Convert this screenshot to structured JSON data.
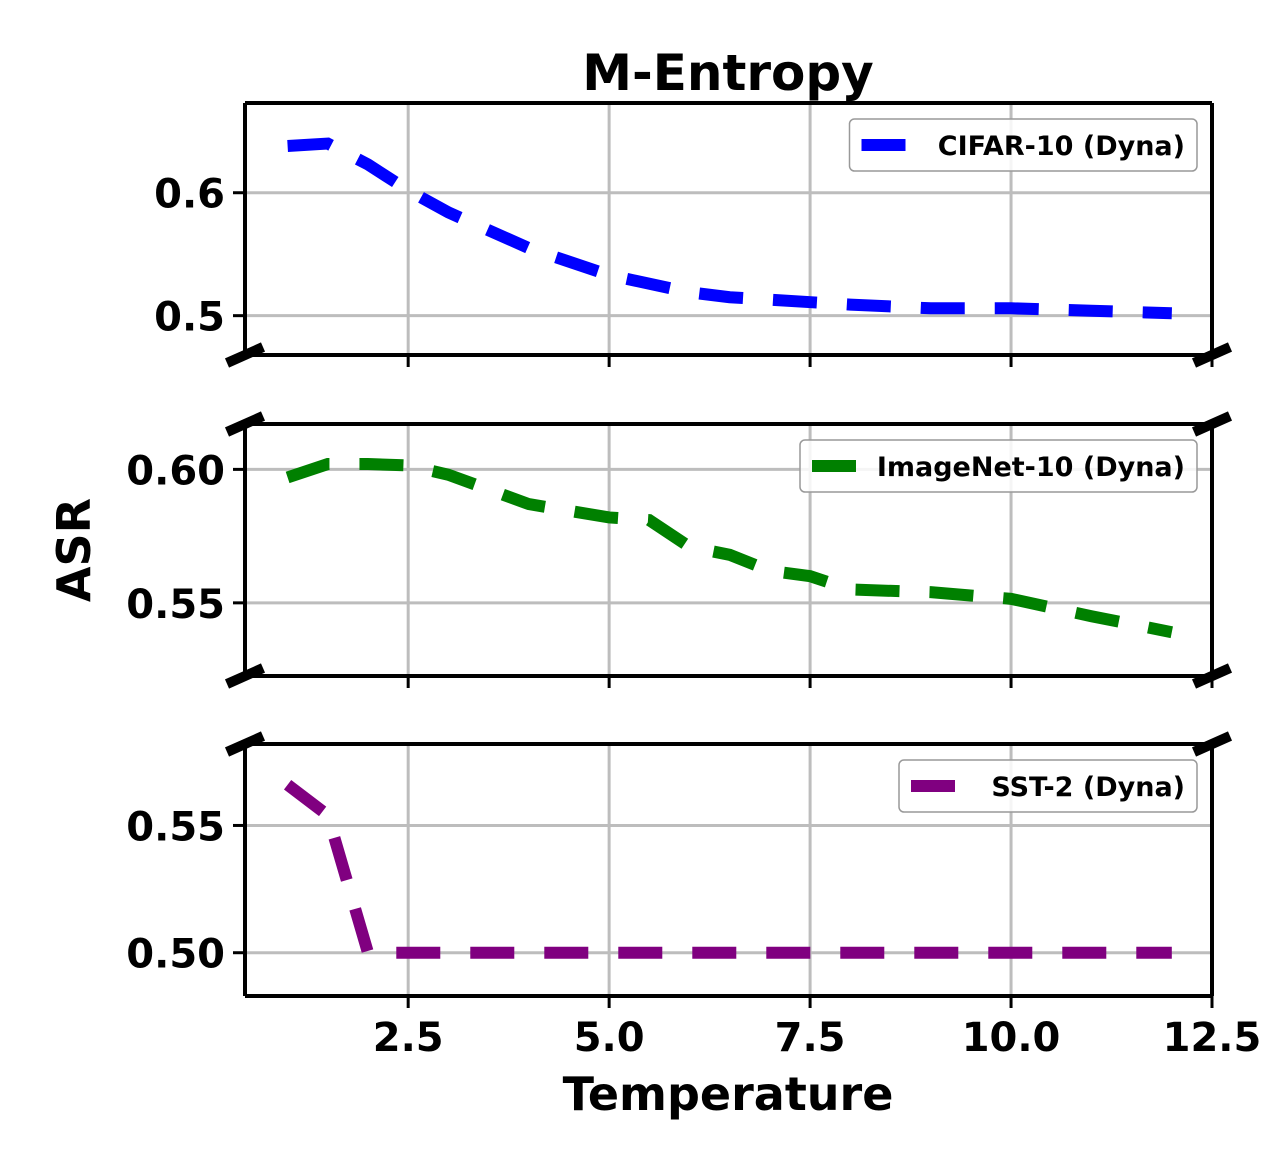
{
  "chart_data": {
    "type": "line",
    "title": "M-Entropy",
    "xlabel": "Temperature",
    "ylabel": "ASR",
    "xlim": [
      0.47,
      12.5
    ],
    "xticks": [
      2.5,
      5.0,
      7.5,
      10.0,
      12.5
    ],
    "xtick_labels": [
      "2.5",
      "5.0",
      "7.5",
      "10.0",
      "12.5"
    ],
    "grid": true,
    "broken_axis": true,
    "legend_placement": "upper right",
    "panels": [
      {
        "ylim": [
          0.468,
          0.673
        ],
        "yticks": [
          0.5,
          0.6
        ],
        "ytick_labels": [
          "0.5",
          "0.6"
        ],
        "series": [
          {
            "name": "CIFAR-10 (Dyna)",
            "color": "#0000ff",
            "x": [
              1,
              1.5,
              2,
              2.5,
              3,
              4,
              5,
              6,
              6.5,
              7,
              8,
              9,
              10,
              11,
              12
            ],
            "y": [
              0.638,
              0.64,
              0.623,
              0.602,
              0.584,
              0.555,
              0.533,
              0.519,
              0.515,
              0.513,
              0.509,
              0.506,
              0.506,
              0.504,
              0.502
            ]
          }
        ]
      },
      {
        "ylim": [
          0.5226,
          0.617
        ],
        "yticks": [
          0.55,
          0.6
        ],
        "ytick_labels": [
          "0.55",
          "0.60"
        ],
        "series": [
          {
            "name": "ImageNet-10 (Dyna)",
            "color": "#008000",
            "x": [
              1,
              1.5,
              2,
              2.5,
              3,
              4,
              5,
              5.5,
              6,
              6.5,
              7,
              7.5,
              8,
              9,
              10,
              11,
              12
            ],
            "y": [
              0.597,
              0.602,
              0.602,
              0.6015,
              0.598,
              0.587,
              0.582,
              0.581,
              0.571,
              0.568,
              0.562,
              0.56,
              0.555,
              0.554,
              0.5515,
              0.545,
              0.539
            ]
          }
        ]
      },
      {
        "ylim": [
          0.483,
          0.582
        ],
        "yticks": [
          0.5,
          0.55
        ],
        "ytick_labels": [
          "0.50",
          "0.55"
        ],
        "series": [
          {
            "name": "SST-2 (Dyna)",
            "color": "#800080",
            "x": [
              1,
              1.5,
              2,
              2.5,
              3,
              4,
              5,
              6,
              7,
              8,
              9,
              10,
              11,
              12
            ],
            "y": [
              0.566,
              0.554,
              0.5,
              0.5,
              0.5,
              0.5,
              0.5,
              0.5,
              0.5,
              0.5,
              0.5,
              0.5,
              0.5,
              0.5
            ]
          }
        ]
      }
    ]
  }
}
